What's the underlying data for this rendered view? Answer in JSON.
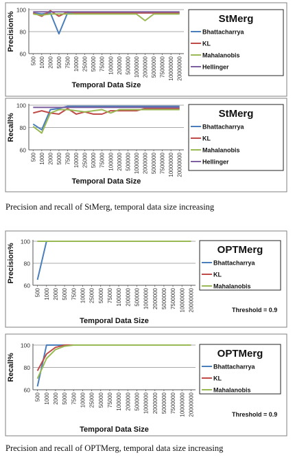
{
  "captions": [
    "Precision and recall of StMerg, temporal data size increasing",
    "Precision and recall of OPTMerg, temporal data size increasing"
  ],
  "colors": {
    "Bhattacharrya": "#4a7ebb",
    "KL": "#be4b48",
    "Mahalanobis": "#98b954",
    "Hellinger": "#7d60a0"
  },
  "chart_data": [
    {
      "type": "line",
      "title": "StMerg",
      "xlabel": "Temporal Data Size",
      "ylabel": "Precision%",
      "ylim": [
        60,
        100
      ],
      "yticks": [
        60,
        80,
        100
      ],
      "legend": "right",
      "categories": [
        "500",
        "1000",
        "2000",
        "5000",
        "7500",
        "10000",
        "25000",
        "50000",
        "75000",
        "100000",
        "200000",
        "500000",
        "1000000",
        "2000000",
        "5000000",
        "7500000",
        "10000000",
        "20000000"
      ],
      "series": [
        {
          "name": "Bhattacharrya",
          "values": [
            97,
            96,
            97,
            78,
            97,
            97,
            97,
            97,
            97,
            97,
            97,
            97,
            97,
            97,
            97,
            97,
            97,
            97
          ]
        },
        {
          "name": "KL",
          "values": [
            97,
            94,
            99,
            94,
            98,
            97,
            97,
            97,
            97,
            97,
            97,
            97,
            97,
            97,
            97,
            97,
            97,
            97
          ]
        },
        {
          "name": "Mahalanobis",
          "values": [
            96,
            95,
            96,
            96,
            96,
            96,
            96,
            96,
            96,
            96,
            96,
            96,
            96,
            90,
            96,
            96,
            96,
            96
          ]
        },
        {
          "name": "Hellinger",
          "values": [
            98,
            98,
            98,
            98,
            98,
            98,
            98,
            98,
            98,
            98,
            98,
            98,
            98,
            98,
            98,
            98,
            98,
            98
          ]
        }
      ]
    },
    {
      "type": "line",
      "title": "StMerg",
      "xlabel": "Temporal Data Size",
      "ylabel": "Recall%",
      "ylim": [
        60,
        100
      ],
      "yticks": [
        60,
        80,
        100
      ],
      "legend": "right",
      "categories": [
        "500",
        "1000",
        "2000",
        "5000",
        "7500",
        "10000",
        "25000",
        "50000",
        "75000",
        "100000",
        "200000",
        "500000",
        "1000000",
        "2000000",
        "5000000",
        "7500000",
        "10000000",
        "20000000"
      ],
      "series": [
        {
          "name": "Bhattacharrya",
          "values": [
            83,
            78,
            96,
            97,
            99,
            99,
            99,
            99,
            99,
            99,
            99,
            99,
            99,
            99,
            99,
            99,
            99,
            99
          ]
        },
        {
          "name": "KL",
          "values": [
            93,
            95,
            93,
            92,
            97,
            92,
            94,
            92,
            92,
            95,
            95,
            95,
            95,
            97,
            97,
            97,
            97,
            97
          ]
        },
        {
          "name": "Mahalanobis",
          "values": [
            81,
            75,
            93,
            96,
            96,
            95,
            94,
            95,
            96,
            93,
            96,
            96,
            96,
            96,
            96,
            96,
            96,
            96
          ]
        },
        {
          "name": "Hellinger",
          "values": [
            98,
            98,
            98,
            98,
            98,
            98,
            98,
            98,
            98,
            98,
            98,
            98,
            98,
            98,
            98,
            98,
            98,
            98
          ]
        }
      ]
    },
    {
      "type": "line",
      "title": "OPTMerg",
      "xlabel": "Temporal Data Size",
      "ylabel": "Precision%",
      "ylim": [
        60,
        100
      ],
      "yticks": [
        60,
        80,
        100
      ],
      "legend": "right",
      "annotation": "Threshold = 0.9",
      "categories": [
        "500",
        "1000",
        "2000",
        "5000",
        "7500",
        "10000",
        "25000",
        "50000",
        "75000",
        "100000",
        "200000",
        "500000",
        "1000000",
        "2000000",
        "5000000",
        "7500000",
        "10000000",
        "20000000"
      ],
      "series": [
        {
          "name": "Bhattacharrya",
          "values": [
            65,
            100,
            100,
            100,
            100,
            100,
            100,
            100,
            100,
            100,
            100,
            100,
            100,
            100,
            100,
            100,
            100,
            100
          ]
        },
        {
          "name": "KL",
          "values": [
            100,
            100,
            100,
            100,
            100,
            100,
            100,
            100,
            100,
            100,
            100,
            100,
            100,
            100,
            100,
            100,
            100,
            100
          ]
        },
        {
          "name": "Mahalanobis",
          "values": [
            100,
            100,
            100,
            100,
            100,
            100,
            100,
            100,
            100,
            100,
            100,
            100,
            100,
            100,
            100,
            100,
            100,
            100
          ]
        }
      ]
    },
    {
      "type": "line",
      "title": "OPTMerg",
      "xlabel": "Temporal Data Size",
      "ylabel": "Recall%",
      "ylim": [
        60,
        100
      ],
      "yticks": [
        60,
        80,
        100
      ],
      "legend": "right",
      "annotation": "Threshold = 0.9",
      "categories": [
        "500",
        "1000",
        "2000",
        "5000",
        "7500",
        "10000",
        "25000",
        "50000",
        "75000",
        "100000",
        "200000",
        "500000",
        "1000000",
        "2000000",
        "5000000",
        "7500000",
        "10000000",
        "20000000"
      ],
      "series": [
        {
          "name": "Bhattacharrya",
          "values": [
            63,
            100,
            100,
            100,
            100,
            100,
            100,
            100,
            100,
            100,
            100,
            100,
            100,
            100,
            100,
            100,
            100,
            100
          ]
        },
        {
          "name": "KL",
          "values": [
            77,
            92,
            98,
            100,
            100,
            100,
            100,
            100,
            100,
            100,
            100,
            100,
            100,
            100,
            100,
            100,
            100,
            100
          ]
        },
        {
          "name": "Mahalanobis",
          "values": [
            70,
            88,
            96,
            99,
            100,
            100,
            100,
            100,
            100,
            100,
            100,
            100,
            100,
            100,
            100,
            100,
            100,
            100
          ]
        }
      ]
    }
  ]
}
